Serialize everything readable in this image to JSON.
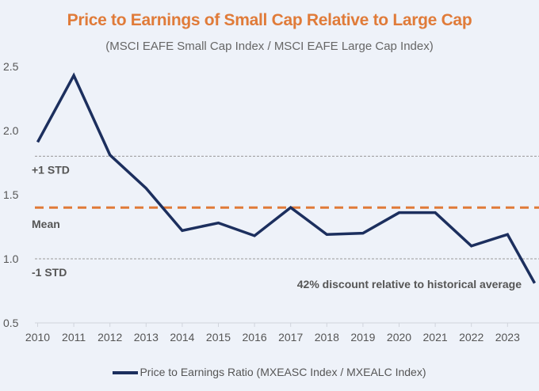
{
  "chart_data": {
    "type": "line",
    "title": "Price to Earnings of Small Cap Relative to Large Cap",
    "subtitle": "(MSCI EAFE Small Cap Index / MSCI EAFE Large Cap Index)",
    "xlabel": "",
    "ylabel": "",
    "x_ticks": [
      "2010",
      "2011",
      "2012",
      "2013",
      "2014",
      "2015",
      "2016",
      "2017",
      "2018",
      "2019",
      "2020",
      "2021",
      "2022",
      "2023"
    ],
    "y_ticks": [
      "0.5",
      "1.0",
      "1.5",
      "2.0",
      "2.5"
    ],
    "ylim": [
      0.5,
      2.5
    ],
    "xlim": [
      2010,
      2023.75
    ],
    "series": [
      {
        "name": "Price to Earnings Ratio (MXEASC Index / MXEALC Index)",
        "color": "#1c2f5e",
        "x": [
          2010,
          2011,
          2012,
          2013,
          2014,
          2015,
          2016,
          2017,
          2018,
          2019,
          2020,
          2021,
          2022,
          2023,
          2023.75
        ],
        "values": [
          1.91,
          2.43,
          1.81,
          1.55,
          1.22,
          1.28,
          1.18,
          1.4,
          1.19,
          1.2,
          1.36,
          1.36,
          1.1,
          1.19,
          0.81
        ]
      }
    ],
    "reference_lines": [
      {
        "label": "+1 STD",
        "value": 1.8,
        "color": "#999999",
        "style": "dotted"
      },
      {
        "label": "Mean",
        "value": 1.4,
        "color": "#e07b39",
        "style": "dashed"
      },
      {
        "label": "-1 STD",
        "value": 1.0,
        "color": "#999999",
        "style": "dotted"
      }
    ],
    "annotations": [
      "42% discount relative to historical average"
    ],
    "legend_position": "bottom",
    "grid": false
  }
}
